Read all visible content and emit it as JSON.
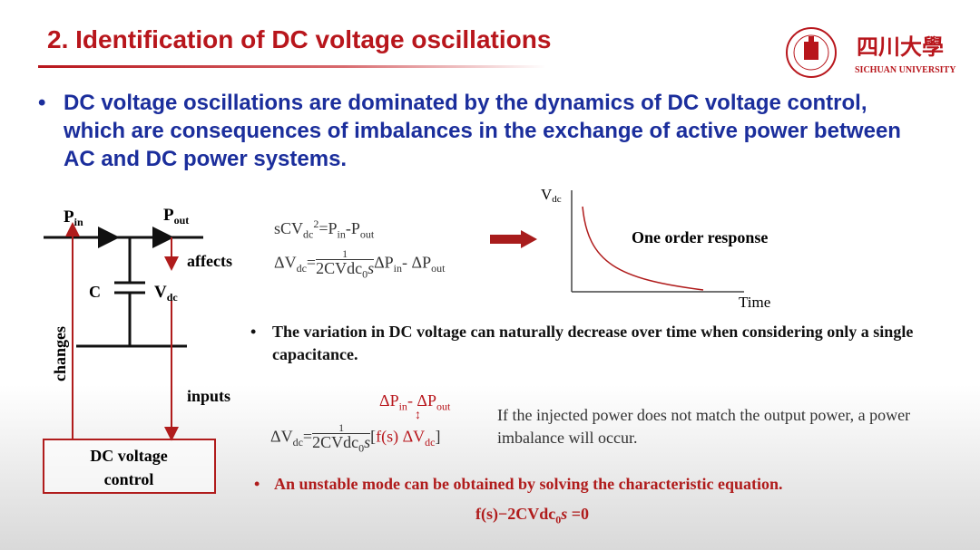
{
  "title": "2. Identification of DC voltage oscillations",
  "logo": {
    "chinese": "四川大學",
    "english": "SICHUAN UNIVERSITY",
    "seal_year": "1896"
  },
  "bullet_main": "DC voltage oscillations are dominated by the dynamics of DC voltage control, which are consequences of imbalances in the exchange of active power between AC and DC power systems.",
  "diagram": {
    "p_in": "P",
    "p_in_sub": "in",
    "p_out": "P",
    "p_out_sub": "out",
    "affects": "affects",
    "c_label": "C",
    "vdc": "V",
    "vdc_sub": "dc",
    "changes": "changes",
    "inputs": "inputs",
    "box_line1": "DC voltage",
    "box_line2": "control"
  },
  "equations": {
    "eq1": {
      "lhs": "sCV",
      "sub": "dc",
      "sup": "2",
      "rhs": "=P",
      "rhs_sub1": "in",
      "mid": "-P",
      "rhs_sub2": "out"
    },
    "eq2": {
      "lhs": "ΔV",
      "sub": "dc",
      "eq": "=",
      "num": "1",
      "den": "2CVdc",
      "den_sub": "0",
      "den_s": "s",
      "tail1": "ΔP",
      "tail_sub1": "in",
      "tail2": "- ΔP",
      "tail_sub2": "out"
    },
    "eq3_top": {
      "a": "ΔP",
      "a_sub": "in",
      "b": "- ΔP",
      "b_sub": "out"
    },
    "eq3": {
      "lhs": "ΔV",
      "sub": "dc",
      "eq": "=",
      "num": "1",
      "den": "2CVdc",
      "den_sub": "0",
      "den_s": "s",
      "open": "[",
      "fs": "f(s) ΔV",
      "fs_sub": "dc",
      "close": "]"
    },
    "char_eq": {
      "a": "f(s)−2CVdc",
      "sub": "0",
      "s": "s",
      "b": " =0"
    }
  },
  "graph": {
    "ylabel": "V",
    "ylabel_sub": "dc",
    "xlabel": "Time",
    "caption": "One order response"
  },
  "bullet_variation": "The variation in DC voltage can naturally decrease over time when considering only a single capacitance.",
  "imbalance_note": "If the injected power does not match the output power, a power imbalance will occur.",
  "bullet_unstable": "An unstable mode can be obtained by solving the characteristic equation.",
  "bullet_symbol": "•",
  "colors": {
    "title": "#b8161c",
    "bullet_blue": "#1b2e9c",
    "accent_red": "#b8161c"
  }
}
